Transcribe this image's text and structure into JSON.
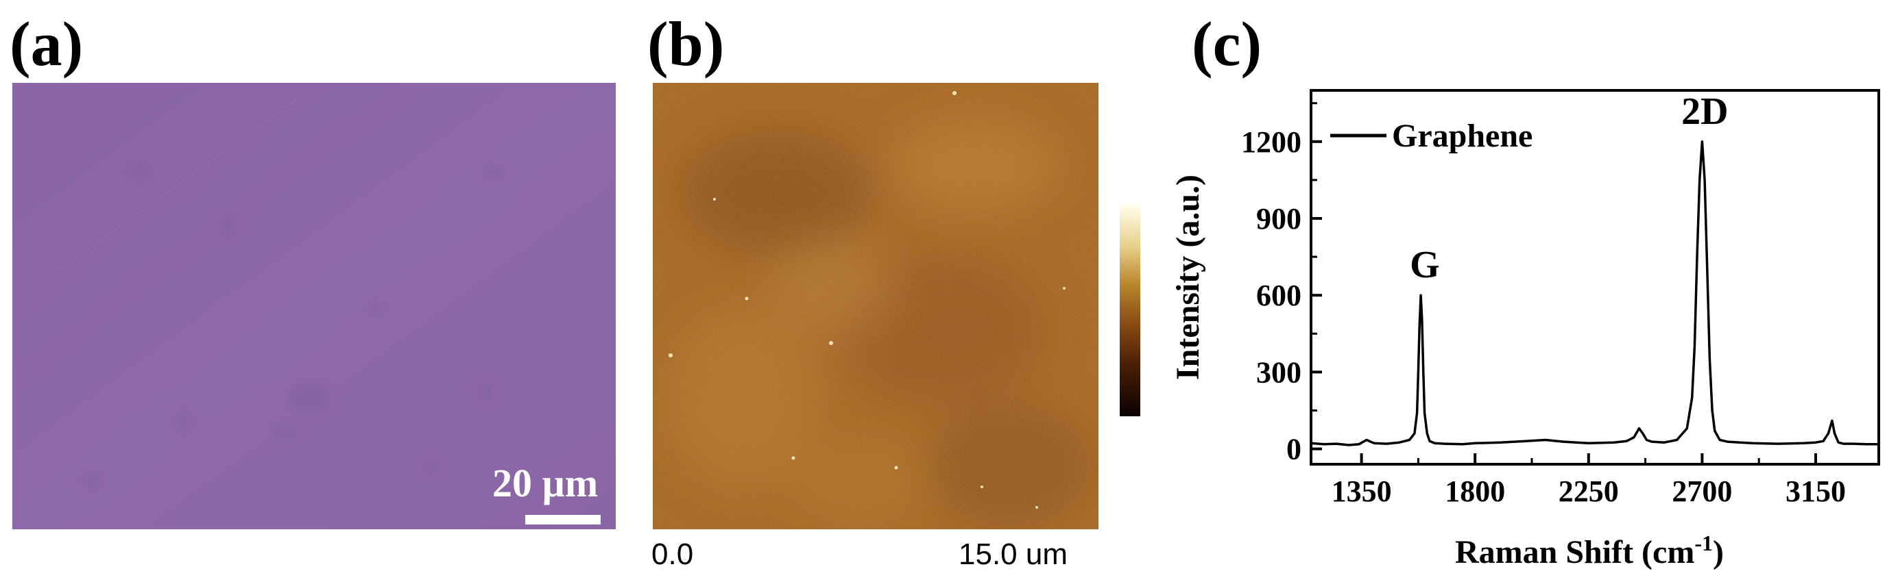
{
  "panels": {
    "a": {
      "label": "(a)",
      "scalebar_text": "20 µm"
    },
    "b": {
      "label": "(b)",
      "x_start": "0.0",
      "x_end": "15.0 um"
    },
    "c": {
      "label": "(c)"
    }
  },
  "colors": {
    "optical_base": "#8b65a6",
    "afm_base": "#9a5a1a",
    "line": "#000000"
  },
  "chart_data": {
    "type": "line",
    "title": "",
    "xlabel": "Raman Shift (cm",
    "xlabel_sup": "-1",
    "xlabel_close": ")",
    "ylabel": "Intensity (a.u.)",
    "xlim": [
      1150,
      3400
    ],
    "ylim": [
      -60,
      1400
    ],
    "xticks": [
      1350,
      1800,
      2250,
      2700,
      3150
    ],
    "yticks": [
      0,
      300,
      600,
      900,
      1200
    ],
    "legend": {
      "placement": "top-left"
    },
    "series": [
      {
        "name": "Graphene",
        "x": [
          1150,
          1200,
          1250,
          1300,
          1340,
          1370,
          1400,
          1450,
          1500,
          1540,
          1560,
          1570,
          1575,
          1580,
          1585,
          1590,
          1595,
          1600,
          1610,
          1620,
          1640,
          1680,
          1750,
          1800,
          1900,
          2000,
          2080,
          2150,
          2250,
          2350,
          2400,
          2430,
          2450,
          2465,
          2480,
          2500,
          2550,
          2600,
          2640,
          2660,
          2670,
          2680,
          2690,
          2700,
          2710,
          2720,
          2730,
          2740,
          2750,
          2770,
          2800,
          2850,
          2900,
          3000,
          3100,
          3150,
          3180,
          3200,
          3215,
          3225,
          3240,
          3260,
          3300,
          3350,
          3400
        ],
        "y": [
          22,
          18,
          20,
          15,
          18,
          35,
          22,
          20,
          25,
          35,
          60,
          140,
          300,
          480,
          600,
          500,
          300,
          140,
          60,
          30,
          22,
          20,
          18,
          22,
          25,
          30,
          35,
          28,
          22,
          25,
          30,
          45,
          80,
          60,
          35,
          28,
          25,
          35,
          80,
          200,
          400,
          750,
          1050,
          1200,
          1050,
          700,
          350,
          150,
          70,
          35,
          28,
          25,
          22,
          20,
          22,
          25,
          30,
          60,
          110,
          60,
          25,
          20,
          20,
          18,
          18
        ]
      }
    ],
    "annotations": [
      {
        "text": "G",
        "x": 1590,
        "y": 600
      },
      {
        "text": "2D",
        "x": 2700,
        "y": 1200
      }
    ]
  }
}
